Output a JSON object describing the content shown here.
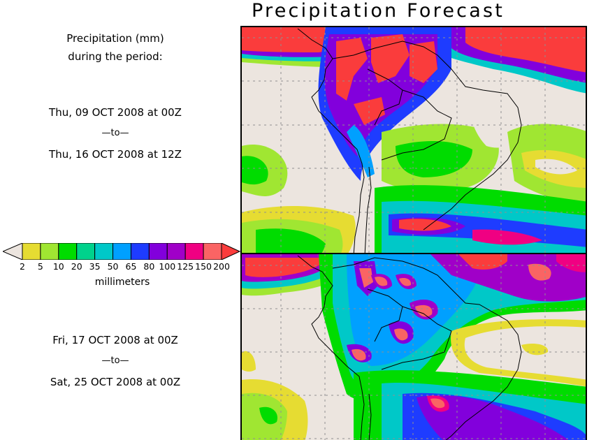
{
  "title": "Precipitation Forecast",
  "legend_header": {
    "line1": "Precipitation (mm)",
    "line2": "during the period:"
  },
  "periods": [
    {
      "start": "Thu, 09 OCT 2008 at 00Z",
      "separator": "—to—",
      "end": "Thu, 16 OCT 2008 at 12Z"
    },
    {
      "start": "Fri, 17 OCT 2008 at 00Z",
      "separator": "—to—",
      "end": "Sat, 25 OCT 2008 at 00Z"
    }
  ],
  "colorbar": {
    "unit": "millimeters",
    "ticks": [
      "2",
      "5",
      "10",
      "20",
      "35",
      "50",
      "65",
      "80",
      "100",
      "125",
      "150",
      "200"
    ],
    "under_color": "#ece5df",
    "over_color": "#fa3c3c",
    "colors": [
      "#e6dc32",
      "#a0e632",
      "#00dc00",
      "#00d28c",
      "#00c8c8",
      "#00a0ff",
      "#1e3cff",
      "#8200dc",
      "#a000c8",
      "#f00082",
      "#fa6464"
    ]
  },
  "maps": [
    {
      "id": "period-1",
      "region": "South America"
    },
    {
      "id": "period-2",
      "region": "South America"
    }
  ]
}
